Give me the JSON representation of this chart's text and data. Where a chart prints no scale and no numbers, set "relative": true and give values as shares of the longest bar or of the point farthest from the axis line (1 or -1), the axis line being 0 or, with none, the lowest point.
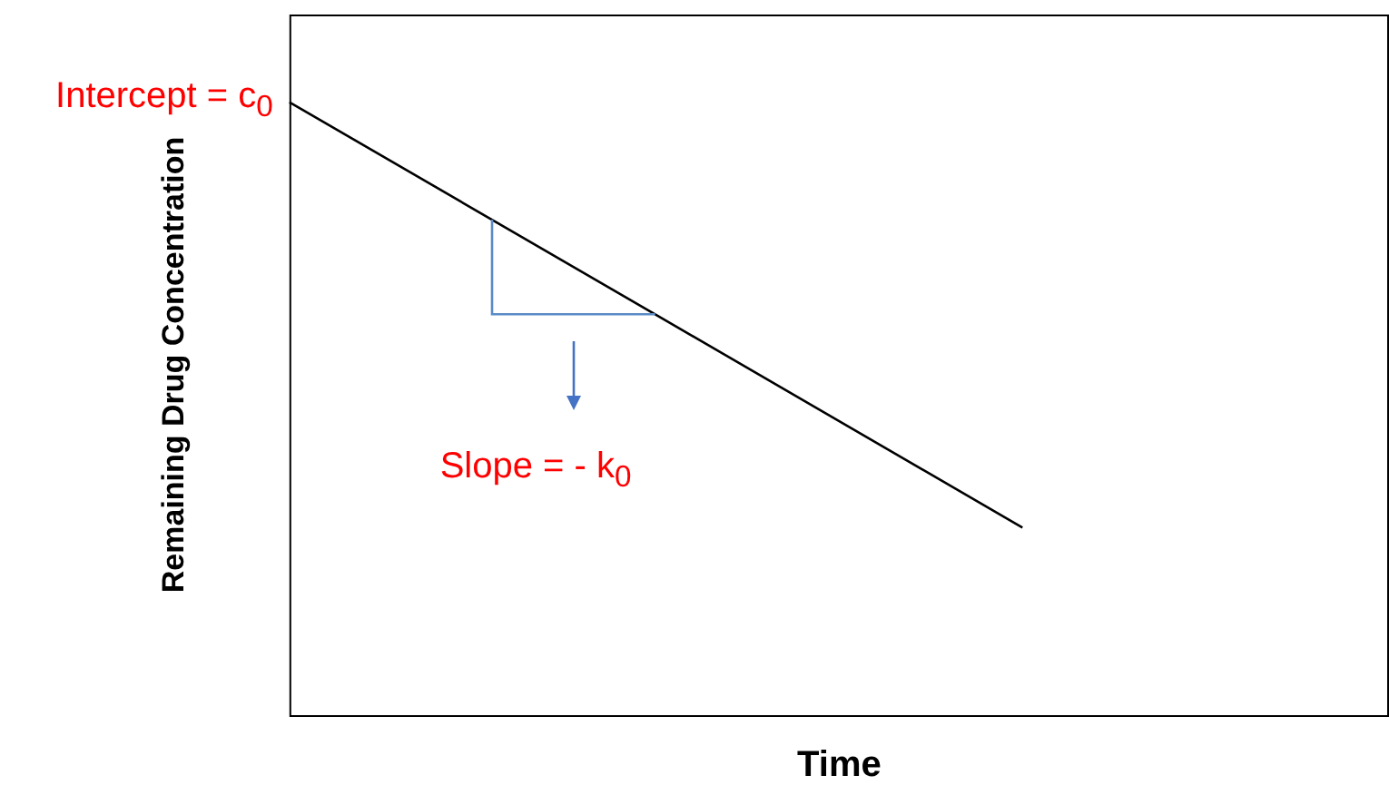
{
  "chart_data": {
    "type": "line",
    "xlabel": "Time",
    "ylabel": "Remaining Drug Concentration",
    "categories": [
      null,
      null,
      null,
      null
    ],
    "relative": true,
    "tick_labels": false,
    "marker": "none",
    "series": [
      {
        "color": "#000000",
        "values": [
          1,
          0.653,
          0.306,
          null
        ]
      }
    ],
    "annotations": [
      "Intercept = c$_{0}$",
      "Slope = - k$_{0}$"
    ]
  }
}
